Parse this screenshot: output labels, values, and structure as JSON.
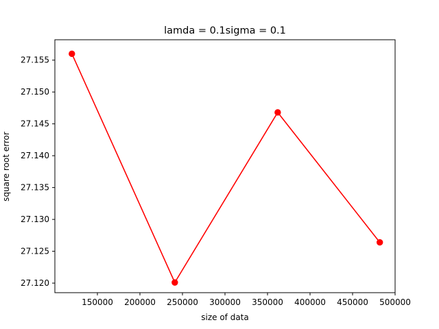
{
  "chart_data": {
    "type": "line",
    "title": "lamda = 0.1sigma = 0.1",
    "xlabel": "size of data",
    "ylabel": "square root error",
    "x": [
      120000,
      241000,
      362000,
      482000
    ],
    "series": [
      {
        "values": [
          27.156,
          27.1201,
          27.1468,
          27.1264
        ],
        "color": "#ff0000",
        "marker": "circle"
      }
    ],
    "xlim": [
      100000,
      500000
    ],
    "ylim": [
      27.1185,
      27.1582
    ],
    "xticks": [
      150000,
      200000,
      250000,
      300000,
      350000,
      400000,
      450000,
      500000
    ],
    "xtick_labels": [
      "150000",
      "200000",
      "250000",
      "300000",
      "350000",
      "400000",
      "450000",
      "500000"
    ],
    "yticks": [
      27.12,
      27.125,
      27.13,
      27.135,
      27.14,
      27.145,
      27.15,
      27.155
    ],
    "ytick_labels": [
      "27.120",
      "27.125",
      "27.130",
      "27.135",
      "27.140",
      "27.145",
      "27.150",
      "27.155"
    ],
    "grid": false,
    "legend": "none"
  }
}
